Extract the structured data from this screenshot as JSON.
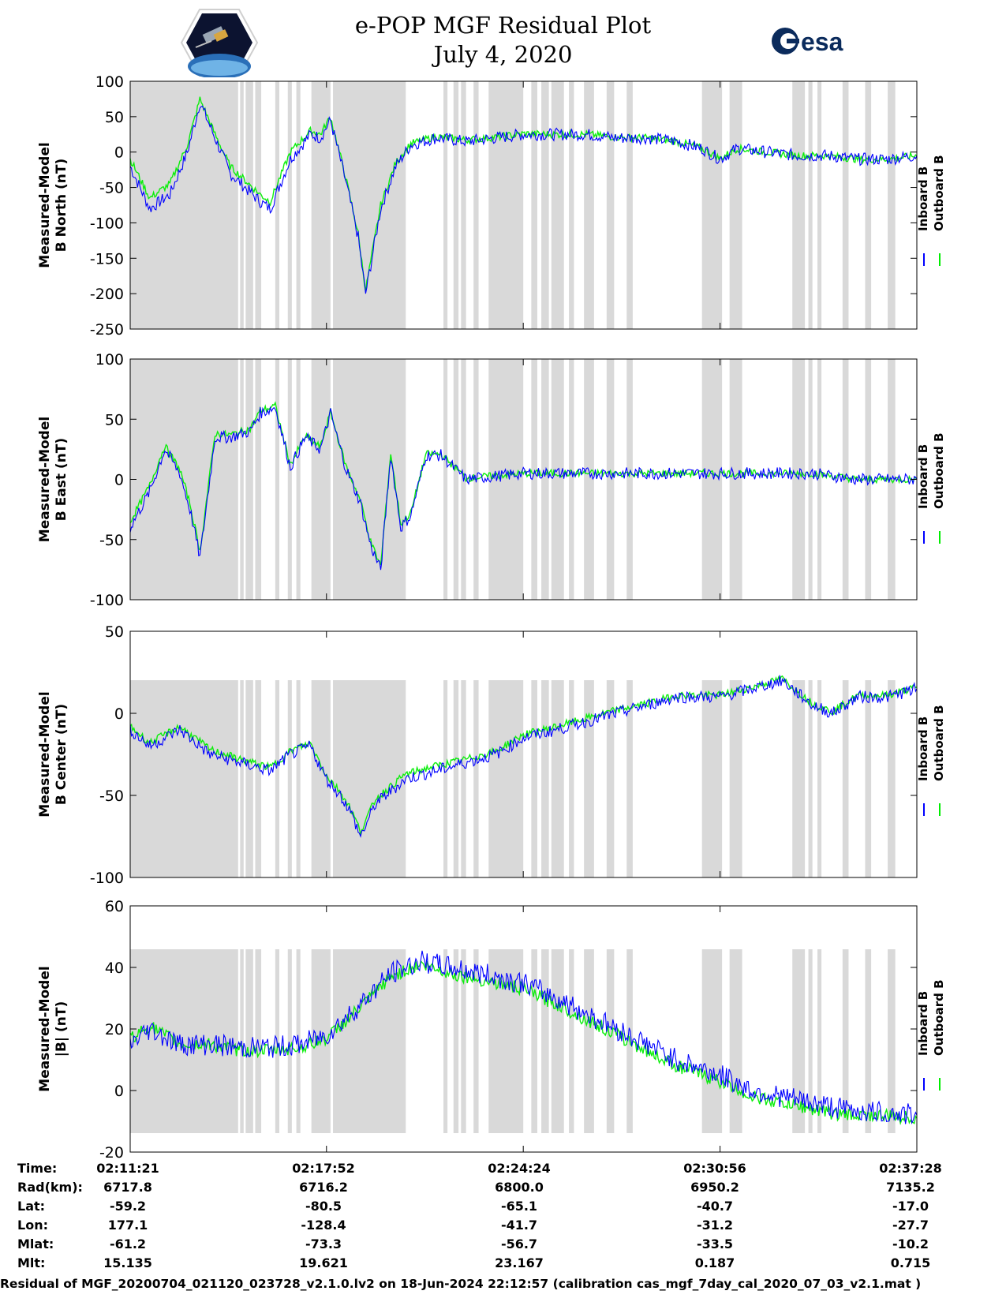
{
  "title": {
    "line1": "e-POP MGF Residual Plot",
    "line2": "July 4, 2020"
  },
  "logos": {
    "left": "CASSIOPE",
    "right": "esa"
  },
  "colors": {
    "inboard": "#0000ff",
    "outboard": "#00ee00",
    "gap_shading": "#d9d9d9"
  },
  "legend": [
    "Inboard B",
    "Outboard B"
  ],
  "time_range": [
    "02:11:21",
    "02:37:28"
  ],
  "shaded_intervals": [
    [
      "02:11:21",
      "02:14:56"
    ],
    [
      "02:15:00",
      "02:15:07"
    ],
    [
      "02:15:11",
      "02:15:26"
    ],
    [
      "02:15:30",
      "02:15:42"
    ],
    [
      "02:16:10",
      "02:16:18"
    ],
    [
      "02:16:35",
      "02:16:43"
    ],
    [
      "02:16:52",
      "02:17:00"
    ],
    [
      "02:17:22",
      "02:18:00"
    ],
    [
      "02:18:05",
      "02:20:30"
    ],
    [
      "02:21:45",
      "02:21:53"
    ],
    [
      "02:22:05",
      "02:22:15"
    ],
    [
      "02:22:20",
      "02:22:30"
    ],
    [
      "02:22:45",
      "02:22:55"
    ],
    [
      "02:23:15",
      "02:24:24"
    ],
    [
      "02:24:40",
      "02:24:52"
    ],
    [
      "02:25:00",
      "02:25:15"
    ],
    [
      "02:25:20",
      "02:25:45"
    ],
    [
      "02:25:55",
      "02:26:05"
    ],
    [
      "02:26:25",
      "02:26:45"
    ],
    [
      "02:27:10",
      "02:27:25"
    ],
    [
      "02:27:50",
      "02:28:02"
    ],
    [
      "02:30:20",
      "02:31:00"
    ],
    [
      "02:31:15",
      "02:31:40"
    ],
    [
      "02:33:20",
      "02:33:45"
    ],
    [
      "02:33:52",
      "02:34:00"
    ],
    [
      "02:34:10",
      "02:34:18"
    ],
    [
      "02:35:00",
      "02:35:12"
    ],
    [
      "02:35:45",
      "02:35:57"
    ],
    [
      "02:36:30",
      "02:36:45"
    ]
  ],
  "chart_data": [
    {
      "type": "line",
      "ylabel": [
        "Measured-Model",
        "B North (nT)"
      ],
      "ylim": [
        -250,
        100
      ],
      "yticks": [
        "100",
        "50",
        "0",
        "-50",
        "-100",
        "-150",
        "-200",
        "-250"
      ],
      "x_unit": "time (HH:MM:SS)",
      "series": [
        {
          "name": "Inboard B",
          "x": [
            "02:11:21",
            "02:12:00",
            "02:12:40",
            "02:13:15",
            "02:13:40",
            "02:14:10",
            "02:14:40",
            "02:15:10",
            "02:15:40",
            "02:16:00",
            "02:16:40",
            "02:17:20",
            "02:17:40",
            "02:18:00",
            "02:18:30",
            "02:18:55",
            "02:19:10",
            "02:19:40",
            "02:20:10",
            "02:20:40",
            "02:21:30",
            "02:22:30",
            "02:23:30",
            "02:24:24",
            "02:25:30",
            "02:26:30",
            "02:27:30",
            "02:28:30",
            "02:29:30",
            "02:30:20",
            "02:30:56",
            "02:31:30",
            "02:32:30",
            "02:33:30",
            "02:34:30",
            "02:35:30",
            "02:36:30",
            "02:37:28"
          ],
          "y": [
            -20,
            -80,
            -60,
            0,
            70,
            20,
            -30,
            -50,
            -70,
            -80,
            -10,
            25,
            20,
            45,
            -40,
            -120,
            -200,
            -80,
            -20,
            10,
            20,
            15,
            20,
            25,
            25,
            25,
            20,
            20,
            15,
            5,
            -10,
            5,
            0,
            -5,
            -5,
            -10,
            -10,
            -5
          ]
        },
        {
          "name": "Outboard B",
          "x": [
            "02:11:21",
            "02:12:00",
            "02:12:40",
            "02:13:15",
            "02:13:40",
            "02:14:10",
            "02:14:40",
            "02:15:10",
            "02:15:40",
            "02:16:00",
            "02:16:40",
            "02:17:20",
            "02:17:40",
            "02:18:00",
            "02:18:30",
            "02:18:55",
            "02:19:10",
            "02:19:40",
            "02:20:10",
            "02:20:40",
            "02:21:30",
            "02:22:30",
            "02:23:30",
            "02:24:24",
            "02:25:30",
            "02:26:30",
            "02:27:30",
            "02:28:30",
            "02:29:30",
            "02:30:20",
            "02:30:56",
            "02:31:30",
            "02:32:30",
            "02:33:30",
            "02:34:30",
            "02:35:30",
            "02:36:30",
            "02:37:28"
          ],
          "y": [
            -10,
            -65,
            -45,
            10,
            75,
            25,
            -20,
            -40,
            -60,
            -70,
            0,
            30,
            25,
            50,
            -35,
            -115,
            -195,
            -75,
            -15,
            12,
            22,
            17,
            21,
            26,
            25,
            25,
            21,
            20,
            15,
            5,
            -9,
            5,
            0,
            -5,
            -5,
            -10,
            -10,
            -5
          ]
        }
      ]
    },
    {
      "type": "line",
      "ylabel": [
        "Measured-Model",
        "B East (nT)"
      ],
      "ylim": [
        -100,
        100
      ],
      "yticks": [
        "100",
        "50",
        "0",
        "-50",
        "-100"
      ],
      "x_unit": "time (HH:MM:SS)",
      "series": [
        {
          "name": "Inboard B",
          "x": [
            "02:11:21",
            "02:12:00",
            "02:12:30",
            "02:13:00",
            "02:13:20",
            "02:13:40",
            "02:14:10",
            "02:14:40",
            "02:15:20",
            "02:15:40",
            "02:16:10",
            "02:16:40",
            "02:17:10",
            "02:17:40",
            "02:18:00",
            "02:18:30",
            "02:19:00",
            "02:19:20",
            "02:19:40",
            "02:20:00",
            "02:20:20",
            "02:20:40",
            "02:21:10",
            "02:21:40",
            "02:22:30",
            "02:24:24",
            "02:26:00",
            "02:28:00",
            "02:30:00",
            "02:30:56",
            "02:32:00",
            "02:34:00",
            "02:35:30",
            "02:36:30",
            "02:37:28"
          ],
          "y": [
            -40,
            -10,
            25,
            5,
            -25,
            -65,
            35,
            35,
            40,
            55,
            60,
            10,
            35,
            25,
            55,
            10,
            -20,
            -55,
            -75,
            20,
            -40,
            -30,
            20,
            20,
            0,
            5,
            5,
            5,
            5,
            5,
            5,
            5,
            0,
            0,
            0
          ]
        },
        {
          "name": "Outboard B",
          "x": [
            "02:11:21",
            "02:12:00",
            "02:12:30",
            "02:13:00",
            "02:13:20",
            "02:13:40",
            "02:14:10",
            "02:14:40",
            "02:15:20",
            "02:15:40",
            "02:16:10",
            "02:16:40",
            "02:17:10",
            "02:17:40",
            "02:18:00",
            "02:18:30",
            "02:19:00",
            "02:19:20",
            "02:19:40",
            "02:20:00",
            "02:20:20",
            "02:20:40",
            "02:21:10",
            "02:21:40",
            "02:22:30",
            "02:24:24",
            "02:26:00",
            "02:28:00",
            "02:30:00",
            "02:30:56",
            "02:32:00",
            "02:34:00",
            "02:35:30",
            "02:36:30",
            "02:37:28"
          ],
          "y": [
            -35,
            -5,
            28,
            8,
            -20,
            -60,
            38,
            37,
            42,
            57,
            61,
            12,
            36,
            27,
            56,
            12,
            -18,
            -52,
            -72,
            22,
            -37,
            -28,
            21,
            21,
            1,
            5,
            5,
            5,
            5,
            5,
            5,
            5,
            0,
            0,
            0
          ]
        }
      ]
    },
    {
      "type": "line",
      "ylabel": [
        "Measured-Model",
        "B Center (nT)"
      ],
      "ylim": [
        -100,
        50
      ],
      "yticks": [
        "50",
        "0",
        "-50",
        "-100"
      ],
      "x_unit": "time (HH:MM:SS)",
      "series": [
        {
          "name": "Inboard B",
          "x": [
            "02:11:21",
            "02:12:00",
            "02:13:00",
            "02:14:00",
            "02:15:00",
            "02:16:00",
            "02:16:40",
            "02:17:20",
            "02:17:52",
            "02:18:20",
            "02:18:40",
            "02:19:00",
            "02:19:30",
            "02:20:30",
            "02:21:30",
            "02:22:30",
            "02:23:30",
            "02:24:24",
            "02:25:30",
            "02:26:30",
            "02:27:30",
            "02:28:30",
            "02:29:30",
            "02:30:56",
            "02:32:00",
            "02:33:00",
            "02:34:00",
            "02:34:40",
            "02:35:30",
            "02:36:30",
            "02:37:28"
          ],
          "y": [
            -10,
            -20,
            -10,
            -25,
            -30,
            -35,
            -25,
            -20,
            -40,
            -50,
            -60,
            -75,
            -55,
            -40,
            -35,
            -30,
            -25,
            -15,
            -10,
            -5,
            0,
            5,
            10,
            10,
            15,
            20,
            5,
            0,
            10,
            10,
            15
          ]
        },
        {
          "name": "Outboard B",
          "x": [
            "02:11:21",
            "02:12:00",
            "02:13:00",
            "02:14:00",
            "02:15:00",
            "02:16:00",
            "02:16:40",
            "02:17:20",
            "02:17:52",
            "02:18:20",
            "02:18:40",
            "02:19:00",
            "02:19:30",
            "02:20:30",
            "02:21:30",
            "02:22:30",
            "02:23:30",
            "02:24:24",
            "02:25:30",
            "02:26:30",
            "02:27:30",
            "02:28:30",
            "02:29:30",
            "02:30:56",
            "02:32:00",
            "02:33:00",
            "02:34:00",
            "02:34:40",
            "02:35:30",
            "02:36:30",
            "02:37:28"
          ],
          "y": [
            -8,
            -18,
            -8,
            -22,
            -28,
            -33,
            -23,
            -18,
            -38,
            -48,
            -58,
            -72,
            -52,
            -37,
            -32,
            -28,
            -23,
            -13,
            -8,
            -3,
            2,
            6,
            11,
            11,
            16,
            21,
            6,
            1,
            11,
            11,
            16
          ]
        }
      ]
    },
    {
      "type": "line",
      "ylabel": [
        "Measured-Model",
        "|B| (nT)"
      ],
      "ylim": [
        -20,
        60
      ],
      "yticks": [
        "60",
        "40",
        "20",
        "0",
        "-20"
      ],
      "x_unit": "time (HH:MM:SS)",
      "series": [
        {
          "name": "Inboard B",
          "x": [
            "02:11:21",
            "02:12:00",
            "02:13:00",
            "02:14:00",
            "02:15:00",
            "02:16:00",
            "02:17:00",
            "02:17:52",
            "02:19:00",
            "02:20:00",
            "02:21:00",
            "02:22:00",
            "02:23:00",
            "02:24:24",
            "02:25:30",
            "02:26:30",
            "02:27:30",
            "02:28:30",
            "02:29:30",
            "02:30:56",
            "02:32:00",
            "02:33:00",
            "02:34:00",
            "02:35:00",
            "02:36:00",
            "02:37:28"
          ],
          "y": [
            15,
            20,
            15,
            15,
            14,
            14,
            15,
            18,
            28,
            38,
            42,
            40,
            38,
            35,
            30,
            25,
            20,
            15,
            10,
            5,
            0,
            -2,
            -4,
            -6,
            -7,
            -8
          ]
        },
        {
          "name": "Outboard B",
          "x": [
            "02:11:21",
            "02:12:00",
            "02:13:00",
            "02:14:00",
            "02:15:00",
            "02:16:00",
            "02:17:00",
            "02:17:52",
            "02:19:00",
            "02:20:00",
            "02:21:00",
            "02:22:00",
            "02:23:00",
            "02:24:24",
            "02:25:30",
            "02:26:30",
            "02:27:30",
            "02:28:30",
            "02:29:30",
            "02:30:56",
            "02:32:00",
            "02:33:00",
            "02:34:00",
            "02:35:00",
            "02:36:00",
            "02:37:28"
          ],
          "y": [
            17,
            21,
            15,
            15,
            13,
            13,
            14,
            17,
            27,
            37,
            41,
            38,
            36,
            33,
            28,
            23,
            18,
            13,
            8,
            3,
            -2,
            -4,
            -6,
            -8,
            -8,
            -9
          ]
        }
      ]
    }
  ],
  "ephemeris": {
    "row_labels": [
      "Time:",
      "Rad(km):",
      "Lat:",
      "Lon:",
      "Mlat:",
      "Mlt:"
    ],
    "columns": [
      [
        "02:11:21",
        "6717.8",
        "-59.2",
        "177.1",
        "-61.2",
        "15.135"
      ],
      [
        "02:17:52",
        "6716.2",
        "-80.5",
        "-128.4",
        "-73.3",
        "19.621"
      ],
      [
        "02:24:24",
        "6800.0",
        "-65.1",
        "-41.7",
        "-56.7",
        "23.167"
      ],
      [
        "02:30:56",
        "6950.2",
        "-40.7",
        "-31.2",
        "-33.5",
        "0.187"
      ],
      [
        "02:37:28",
        "7135.2",
        "-17.0",
        "-27.7",
        "-10.2",
        "0.715"
      ]
    ]
  },
  "footer": "Residual of MGF_20200704_021120_023728_v2.1.0.lv2 on 18-Jun-2024 22:12:57 (calibration cas_mgf_7day_cal_2020_07_03_v2.1.mat )"
}
